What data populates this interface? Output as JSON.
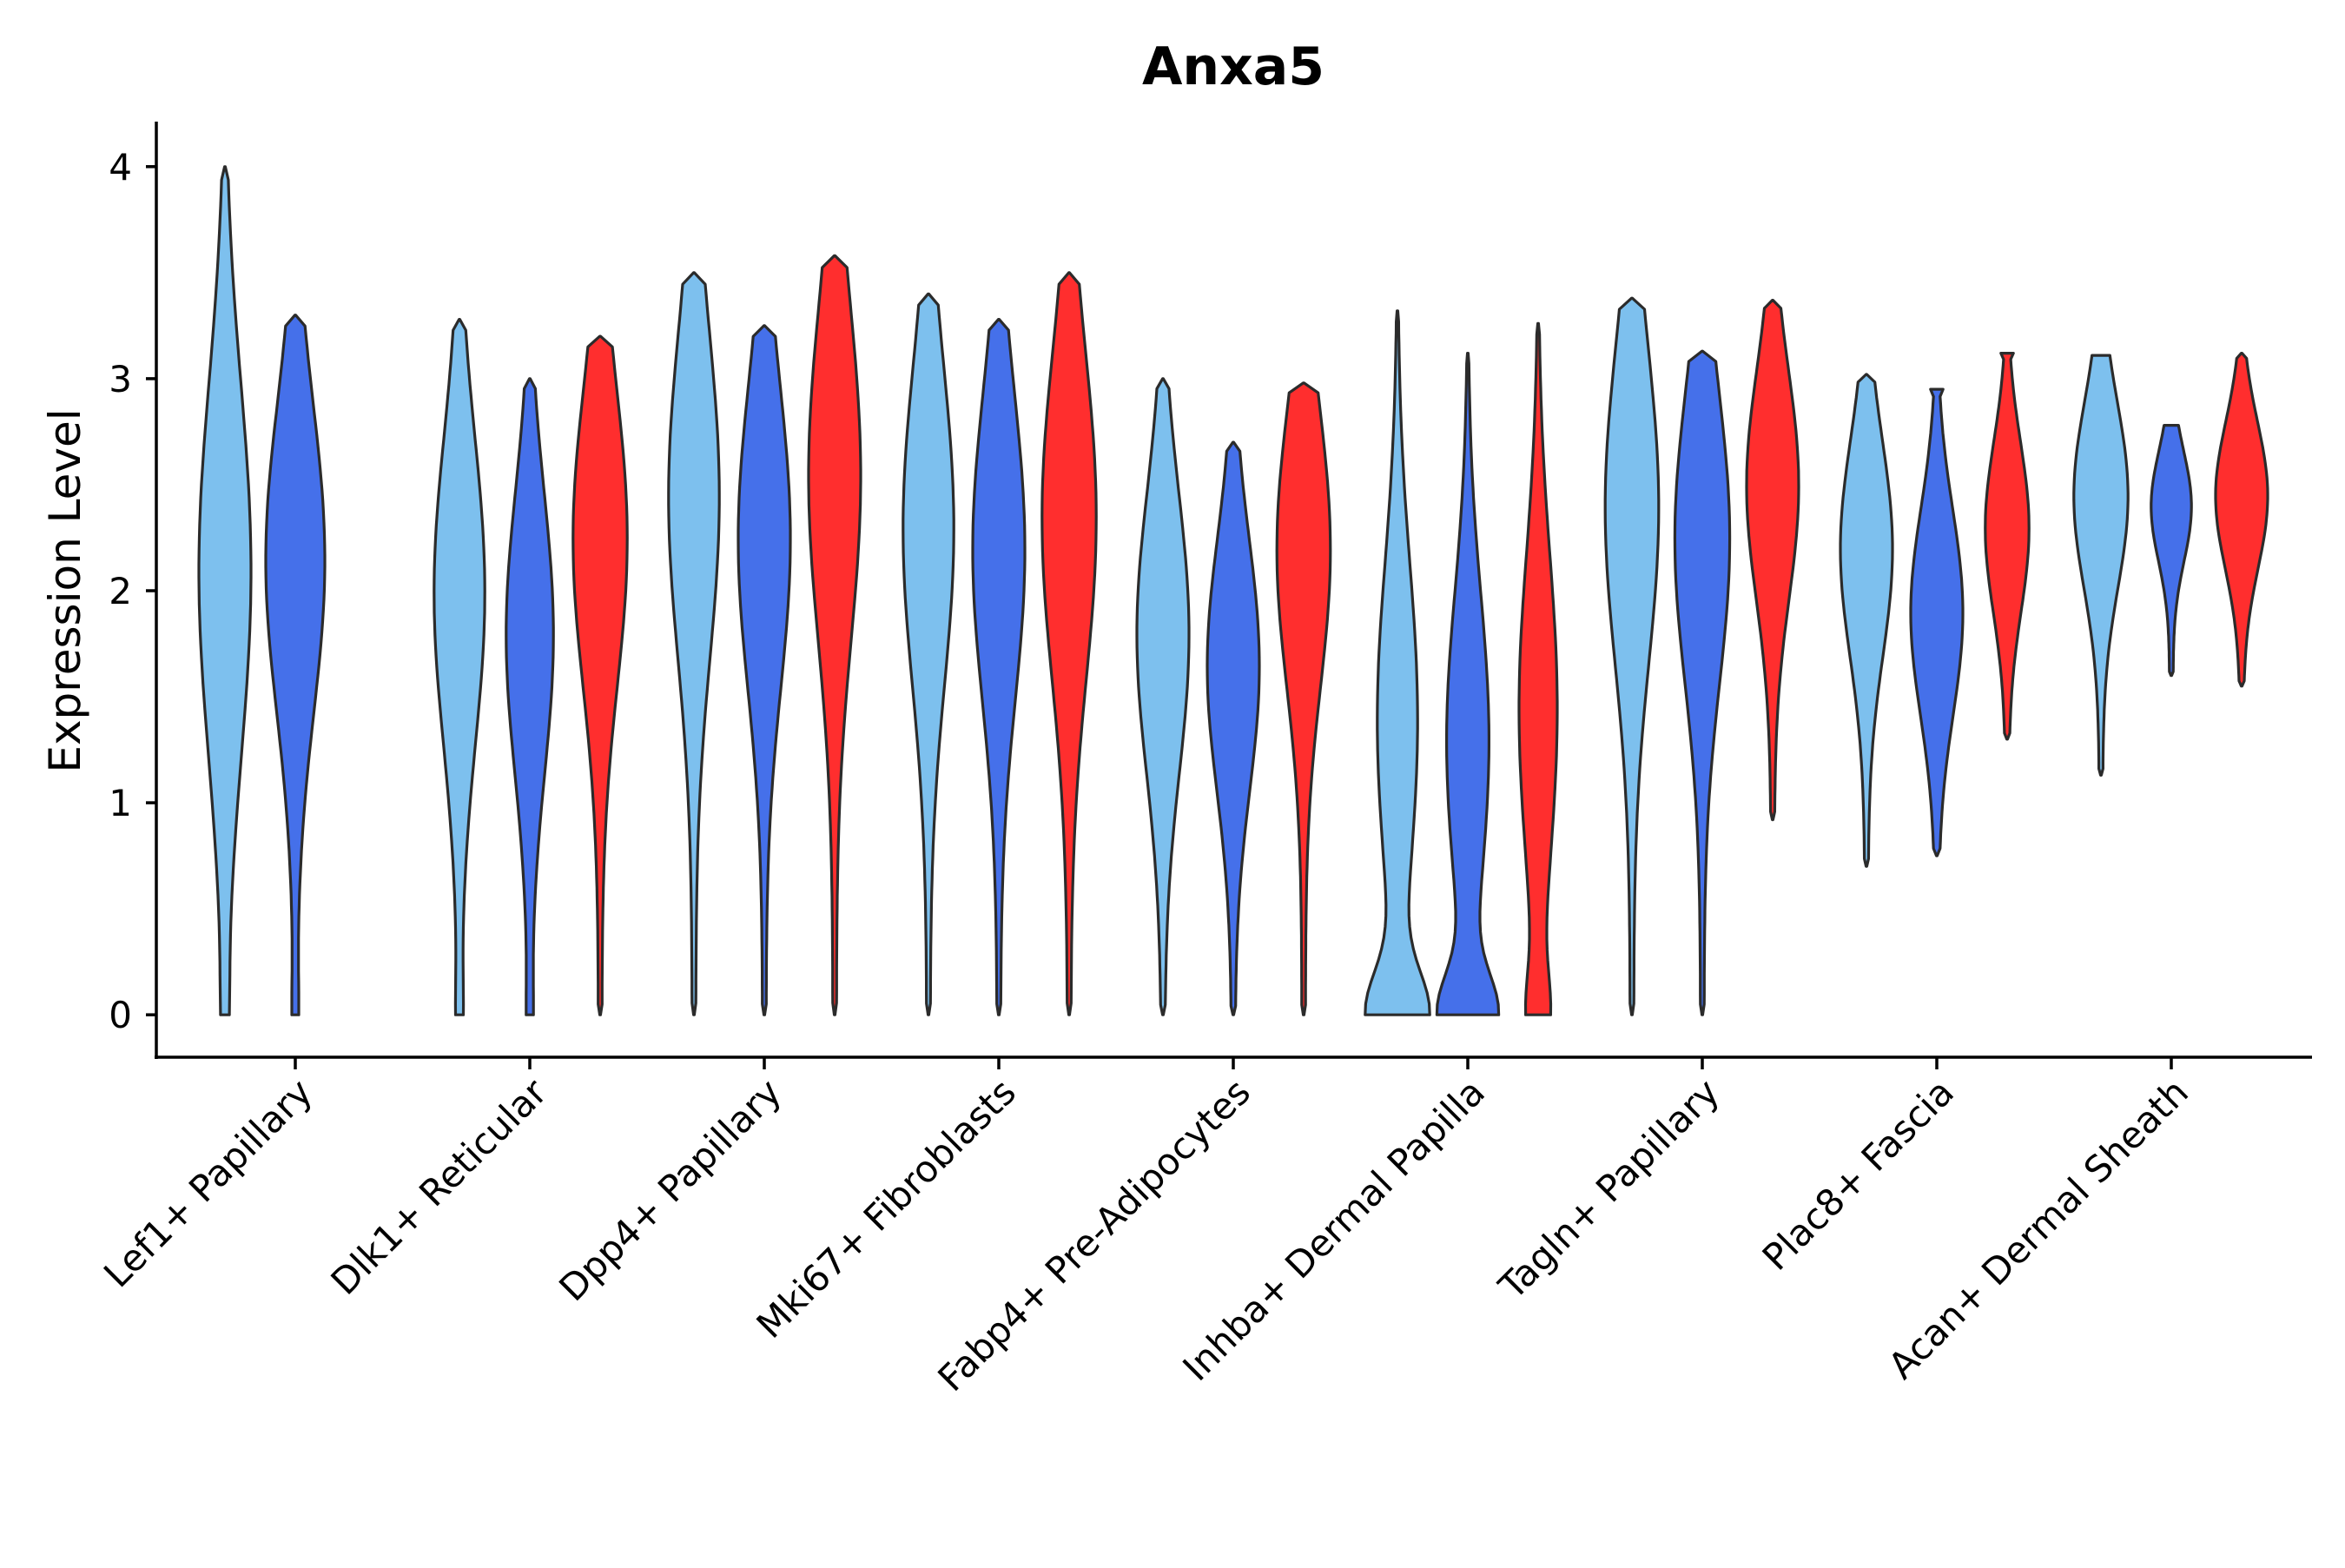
{
  "chart_data": {
    "type": "violin",
    "title": "Anxa5",
    "xlabel": "",
    "ylabel": "Expression Level",
    "ylim": [
      -0.2,
      4.2
    ],
    "yticks": [
      "0",
      "1",
      "2",
      "3",
      "4"
    ],
    "grid": false,
    "categories": [
      "Lef1+ Papillary",
      "Dlk1+ Reticular",
      "Dpp4+ Papillary",
      "Mki67+ Fibroblasts",
      "Fabp4+ Pre-Adipocytes",
      "Inhba+ Dermal Papilla",
      "Tagln+ Papillary",
      "Plac8+ Fascia",
      "Acan+ Dermal Sheath"
    ],
    "series_colors": [
      "#7DC0EE",
      "#4570EA",
      "#FF2E2E"
    ],
    "violins": [
      {
        "category": 0,
        "group": 0,
        "min": 0,
        "max": 4.0,
        "peak": 2.1,
        "width": 0.72,
        "zero_width": 0.04
      },
      {
        "category": 0,
        "group": 1,
        "min": 0,
        "max": 3.3,
        "peak": 2.15,
        "width": 0.82,
        "zero_width": 0.04
      },
      {
        "category": 1,
        "group": 0,
        "min": 0,
        "max": 3.28,
        "peak": 2.0,
        "width": 0.7,
        "zero_width": 0.05
      },
      {
        "category": 1,
        "group": 1,
        "min": 0,
        "max": 3.0,
        "peak": 1.8,
        "width": 0.65,
        "zero_width": 0.04
      },
      {
        "category": 1,
        "group": 2,
        "min": 0,
        "max": 3.2,
        "peak": 2.25,
        "width": 0.75,
        "zero_width": 0.0
      },
      {
        "category": 2,
        "group": 0,
        "min": 0,
        "max": 3.5,
        "peak": 2.45,
        "width": 0.7,
        "zero_width": 0.0
      },
      {
        "category": 2,
        "group": 1,
        "min": 0,
        "max": 3.25,
        "peak": 2.25,
        "width": 0.72,
        "zero_width": 0.0
      },
      {
        "category": 2,
        "group": 2,
        "min": 0,
        "max": 3.58,
        "peak": 2.55,
        "width": 0.72,
        "zero_width": 0.0
      },
      {
        "category": 3,
        "group": 0,
        "min": 0,
        "max": 3.4,
        "peak": 2.3,
        "width": 0.7,
        "zero_width": 0.0
      },
      {
        "category": 3,
        "group": 1,
        "min": 0,
        "max": 3.28,
        "peak": 2.2,
        "width": 0.72,
        "zero_width": 0.0
      },
      {
        "category": 3,
        "group": 2,
        "min": 0,
        "max": 3.5,
        "peak": 2.35,
        "width": 0.75,
        "zero_width": 0.0
      },
      {
        "category": 4,
        "group": 0,
        "min": 0,
        "max": 3.0,
        "peak": 1.8,
        "width": 0.72,
        "zero_width": 0.0
      },
      {
        "category": 4,
        "group": 1,
        "min": 0,
        "max": 2.7,
        "peak": 1.65,
        "width": 0.72,
        "zero_width": 0.0
      },
      {
        "category": 4,
        "group": 2,
        "min": 0,
        "max": 2.98,
        "peak": 2.2,
        "width": 0.74,
        "zero_width": 0.0
      },
      {
        "category": 5,
        "group": 0,
        "min": 0,
        "max": 3.32,
        "peak": 1.4,
        "width": 0.55,
        "zero_width": 0.8
      },
      {
        "category": 5,
        "group": 1,
        "min": 0,
        "max": 3.12,
        "peak": 1.3,
        "width": 0.58,
        "zero_width": 0.75
      },
      {
        "category": 5,
        "group": 2,
        "min": 0,
        "max": 3.26,
        "peak": 1.45,
        "width": 0.52,
        "zero_width": 0.25
      },
      {
        "category": 6,
        "group": 0,
        "min": 0,
        "max": 3.38,
        "peak": 2.4,
        "width": 0.74,
        "zero_width": 0.0
      },
      {
        "category": 6,
        "group": 1,
        "min": 0,
        "max": 3.13,
        "peak": 2.25,
        "width": 0.76,
        "zero_width": 0.0
      },
      {
        "category": 6,
        "group": 2,
        "min": 0.92,
        "max": 3.37,
        "peak": 2.5,
        "width": 0.72,
        "zero_width": 0.0
      },
      {
        "category": 7,
        "group": 0,
        "min": 0.7,
        "max": 3.02,
        "peak": 2.2,
        "width": 0.72,
        "zero_width": 0.0
      },
      {
        "category": 7,
        "group": 1,
        "min": 0.75,
        "max": 2.95,
        "peak": 1.9,
        "width": 0.72,
        "zero_width": 0.0,
        "flat_top": true
      },
      {
        "category": 7,
        "group": 2,
        "min": 1.3,
        "max": 3.12,
        "peak": 2.3,
        "width": 0.6,
        "zero_width": 0.0,
        "flat_top": true
      },
      {
        "category": 8,
        "group": 0,
        "min": 1.13,
        "max": 3.11,
        "peak": 2.45,
        "width": 0.75,
        "zero_width": 0.0,
        "flat_top": true
      },
      {
        "category": 8,
        "group": 1,
        "min": 1.6,
        "max": 2.78,
        "peak": 2.4,
        "width": 0.55,
        "zero_width": 0.0,
        "flat_top": true
      },
      {
        "category": 8,
        "group": 2,
        "min": 1.55,
        "max": 3.12,
        "peak": 2.45,
        "width": 0.72,
        "zero_width": 0.0
      }
    ]
  }
}
